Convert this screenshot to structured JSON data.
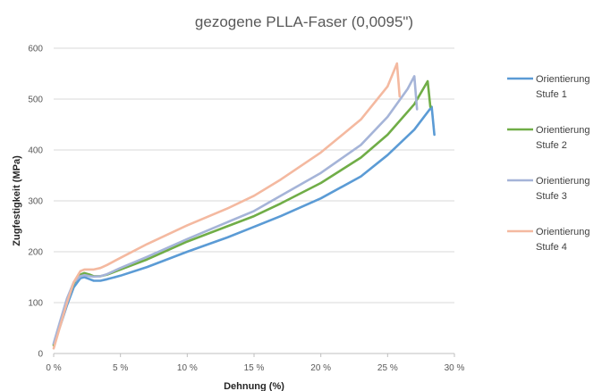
{
  "chart_data": {
    "type": "line",
    "title": "gezogene PLLA-Faser (0,0095\")",
    "xlabel": "Dehnung (%)",
    "ylabel": "Zugfestigkeit (MPa)",
    "xlim": [
      0,
      30
    ],
    "ylim": [
      0,
      600
    ],
    "x_ticks": [
      0,
      5,
      10,
      15,
      20,
      25,
      30
    ],
    "x_tick_labels": [
      "0 %",
      "5 %",
      "10 %",
      "15 %",
      "20 %",
      "25 %",
      "30 %"
    ],
    "y_ticks": [
      0,
      100,
      200,
      300,
      400,
      500,
      600
    ],
    "y_tick_labels": [
      "0",
      "100",
      "200",
      "300",
      "400",
      "500",
      "600"
    ],
    "grid": "horizontal",
    "legend_position": "right",
    "series": [
      {
        "name": "Orientierung Stufe 1",
        "legend_lines": [
          "Orientierung",
          "Stufe 1"
        ],
        "color": "#5b9bd5",
        "points": [
          [
            0,
            18
          ],
          [
            0.5,
            55
          ],
          [
            1,
            95
          ],
          [
            1.5,
            130
          ],
          [
            2,
            148
          ],
          [
            2.3,
            150
          ],
          [
            2.6,
            147
          ],
          [
            3,
            143
          ],
          [
            3.5,
            143
          ],
          [
            4,
            146
          ],
          [
            5,
            153
          ],
          [
            7,
            170
          ],
          [
            10,
            200
          ],
          [
            13,
            228
          ],
          [
            15,
            249
          ],
          [
            17,
            270
          ],
          [
            20,
            305
          ],
          [
            23,
            348
          ],
          [
            25,
            390
          ],
          [
            27,
            440
          ],
          [
            28.3,
            485
          ],
          [
            28.5,
            430
          ]
        ]
      },
      {
        "name": "Orientierung Stufe 2",
        "legend_lines": [
          "Orientierung",
          "Stufe 2"
        ],
        "color": "#70ad47",
        "points": [
          [
            0,
            16
          ],
          [
            0.5,
            60
          ],
          [
            1,
            102
          ],
          [
            1.5,
            138
          ],
          [
            2,
            155
          ],
          [
            2.3,
            158
          ],
          [
            2.7,
            155
          ],
          [
            3,
            152
          ],
          [
            3.5,
            152
          ],
          [
            4,
            155
          ],
          [
            5,
            165
          ],
          [
            7,
            185
          ],
          [
            10,
            220
          ],
          [
            13,
            250
          ],
          [
            15,
            270
          ],
          [
            17,
            295
          ],
          [
            20,
            335
          ],
          [
            23,
            385
          ],
          [
            25,
            430
          ],
          [
            27,
            490
          ],
          [
            28,
            535
          ],
          [
            28.2,
            485
          ]
        ]
      },
      {
        "name": "Orientierung Stufe 3",
        "legend_lines": [
          "Orientierung",
          "Stufe 3"
        ],
        "color": "#a5b4d8",
        "points": [
          [
            0,
            20
          ],
          [
            0.5,
            65
          ],
          [
            1,
            108
          ],
          [
            1.5,
            140
          ],
          [
            2,
            152
          ],
          [
            2.3,
            154
          ],
          [
            2.7,
            152
          ],
          [
            3,
            151
          ],
          [
            3.5,
            152
          ],
          [
            4,
            156
          ],
          [
            5,
            168
          ],
          [
            7,
            190
          ],
          [
            10,
            225
          ],
          [
            13,
            258
          ],
          [
            15,
            280
          ],
          [
            17,
            310
          ],
          [
            20,
            355
          ],
          [
            23,
            410
          ],
          [
            25,
            465
          ],
          [
            26.5,
            520
          ],
          [
            27,
            545
          ],
          [
            27.2,
            480
          ]
        ]
      },
      {
        "name": "Orientierung Stufe 4",
        "legend_lines": [
          "Orientierung",
          "Stufe 4"
        ],
        "color": "#f4b9a0",
        "points": [
          [
            0,
            10
          ],
          [
            0.5,
            55
          ],
          [
            1,
            100
          ],
          [
            1.5,
            140
          ],
          [
            2,
            162
          ],
          [
            2.3,
            165
          ],
          [
            2.7,
            165
          ],
          [
            3,
            165
          ],
          [
            3.5,
            168
          ],
          [
            4,
            174
          ],
          [
            5,
            188
          ],
          [
            7,
            215
          ],
          [
            10,
            252
          ],
          [
            13,
            285
          ],
          [
            15,
            310
          ],
          [
            17,
            342
          ],
          [
            20,
            395
          ],
          [
            23,
            460
          ],
          [
            25,
            525
          ],
          [
            25.7,
            570
          ],
          [
            25.9,
            505
          ]
        ]
      }
    ]
  }
}
